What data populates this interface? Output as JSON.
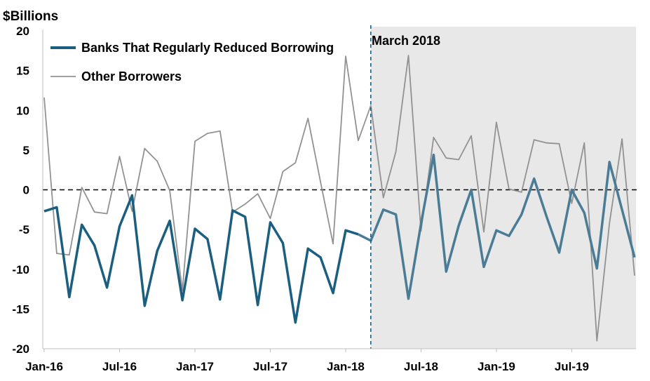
{
  "chart_data": {
    "type": "line",
    "ylabel": "$Billions",
    "ylim": [
      -20,
      20
    ],
    "yticks": [
      "20",
      "15",
      "10",
      "5",
      "0",
      "-5",
      "-10",
      "-15",
      "-20"
    ],
    "ytick_values": [
      20,
      15,
      10,
      5,
      0,
      -5,
      -10,
      -15,
      -20
    ],
    "x_tick_labels": [
      "Jan-16",
      "Jul-16",
      "Jan-17",
      "Jul-17",
      "Jan-18",
      "Jul-18",
      "Jan-19",
      "Jul-19"
    ],
    "x_tick_dates": [
      "2016-01",
      "2016-07",
      "2017-01",
      "2017-07",
      "2018-01",
      "2018-07",
      "2019-01",
      "2019-07"
    ],
    "x_start": "2016-01",
    "x_end": "2019-12",
    "shaded_start": "2018-03",
    "annotation": "March 2018",
    "zero_line": true,
    "legend_position": "top-left",
    "series": [
      {
        "name": "Banks That Regularly Reduced Borrowing",
        "color": "#1b5e7f",
        "shaded_color": "#4a7c96",
        "points": [
          [
            "2016-01",
            -2.7
          ],
          [
            "2016-02",
            -2.2
          ],
          [
            "2016-03",
            -13.5
          ],
          [
            "2016-04",
            -4.4
          ],
          [
            "2016-05",
            -7.0
          ],
          [
            "2016-06",
            -12.3
          ],
          [
            "2016-07",
            -4.6
          ],
          [
            "2016-08",
            -0.7
          ],
          [
            "2016-09",
            -14.6
          ],
          [
            "2016-10",
            -7.7
          ],
          [
            "2016-11",
            -3.9
          ],
          [
            "2016-12",
            -13.9
          ],
          [
            "2017-01",
            -4.9
          ],
          [
            "2017-02",
            -6.2
          ],
          [
            "2017-03",
            -13.8
          ],
          [
            "2017-04",
            -2.6
          ],
          [
            "2017-05",
            -3.4
          ],
          [
            "2017-06",
            -14.5
          ],
          [
            "2017-07",
            -4.1
          ],
          [
            "2017-08",
            -6.7
          ],
          [
            "2017-09",
            -16.7
          ],
          [
            "2017-10",
            -7.4
          ],
          [
            "2017-11",
            -8.5
          ],
          [
            "2017-12",
            -13.0
          ],
          [
            "2018-01",
            -5.1
          ],
          [
            "2018-02",
            -5.6
          ],
          [
            "2018-03",
            -6.4
          ],
          [
            "2018-04",
            -2.5
          ],
          [
            "2018-05",
            -3.1
          ],
          [
            "2018-06",
            -13.7
          ],
          [
            "2018-07",
            -4.3
          ],
          [
            "2018-08",
            4.4
          ],
          [
            "2018-09",
            -10.3
          ],
          [
            "2018-10",
            -4.5
          ],
          [
            "2018-11",
            0.0
          ],
          [
            "2018-12",
            -9.7
          ],
          [
            "2019-01",
            -5.1
          ],
          [
            "2019-02",
            -5.8
          ],
          [
            "2019-03",
            -3.1
          ],
          [
            "2019-04",
            1.4
          ],
          [
            "2019-05",
            -3.4
          ],
          [
            "2019-06",
            -7.9
          ],
          [
            "2019-07",
            0.0
          ],
          [
            "2019-08",
            -2.9
          ],
          [
            "2019-09",
            -9.9
          ],
          [
            "2019-10",
            3.5
          ],
          [
            "2019-11",
            -2.5
          ],
          [
            "2019-12",
            -8.5
          ]
        ]
      },
      {
        "name": "Other Borrowers",
        "color": "#929292",
        "points": [
          [
            "2016-01",
            11.6
          ],
          [
            "2016-02",
            -8.0
          ],
          [
            "2016-03",
            -8.2
          ],
          [
            "2016-04",
            0.3
          ],
          [
            "2016-05",
            -2.8
          ],
          [
            "2016-06",
            -3.0
          ],
          [
            "2016-07",
            4.2
          ],
          [
            "2016-08",
            -2.7
          ],
          [
            "2016-09",
            5.2
          ],
          [
            "2016-10",
            3.6
          ],
          [
            "2016-11",
            -0.1
          ],
          [
            "2016-12",
            -12.7
          ],
          [
            "2017-01",
            6.1
          ],
          [
            "2017-02",
            7.1
          ],
          [
            "2017-03",
            7.4
          ],
          [
            "2017-04",
            -2.8
          ],
          [
            "2017-05",
            -1.8
          ],
          [
            "2017-06",
            -0.5
          ],
          [
            "2017-07",
            -3.6
          ],
          [
            "2017-08",
            2.3
          ],
          [
            "2017-09",
            3.4
          ],
          [
            "2017-10",
            9.0
          ],
          [
            "2017-11",
            1.0
          ],
          [
            "2017-12",
            -6.8
          ],
          [
            "2018-01",
            16.8
          ],
          [
            "2018-02",
            6.2
          ],
          [
            "2018-03",
            10.6
          ],
          [
            "2018-04",
            -1.0
          ],
          [
            "2018-05",
            4.8
          ],
          [
            "2018-06",
            16.9
          ],
          [
            "2018-07",
            -5.2
          ],
          [
            "2018-08",
            6.6
          ],
          [
            "2018-09",
            4.0
          ],
          [
            "2018-10",
            3.8
          ],
          [
            "2018-11",
            6.8
          ],
          [
            "2018-12",
            -5.3
          ],
          [
            "2019-01",
            8.5
          ],
          [
            "2019-02",
            0.1
          ],
          [
            "2019-03",
            -0.3
          ],
          [
            "2019-04",
            6.3
          ],
          [
            "2019-05",
            5.9
          ],
          [
            "2019-06",
            5.8
          ],
          [
            "2019-07",
            -1.7
          ],
          [
            "2019-08",
            5.9
          ],
          [
            "2019-09",
            -19.0
          ],
          [
            "2019-10",
            -4.2
          ],
          [
            "2019-11",
            6.4
          ],
          [
            "2019-12",
            -10.8
          ]
        ]
      }
    ]
  }
}
